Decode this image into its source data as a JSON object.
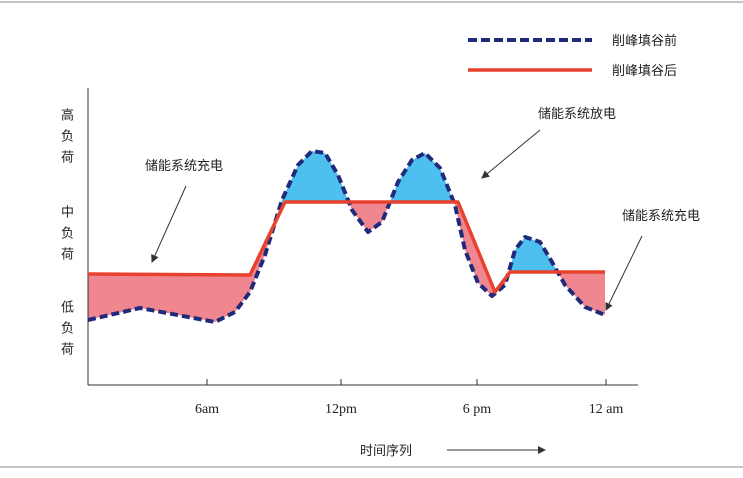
{
  "legend": {
    "items": [
      "削峰填谷前",
      "削峰填谷后"
    ]
  },
  "annotations": {
    "discharge": "储能系统放电",
    "charge_left": "储能系统充电",
    "charge_right": "储能系统充电"
  },
  "y_axis": {
    "labels": [
      "高负荷",
      "中负荷",
      "低负荷"
    ]
  },
  "x_axis": {
    "labels": [
      "6am",
      "12pm",
      "6 pm",
      "12 am"
    ],
    "title": "时间序列"
  }
}
